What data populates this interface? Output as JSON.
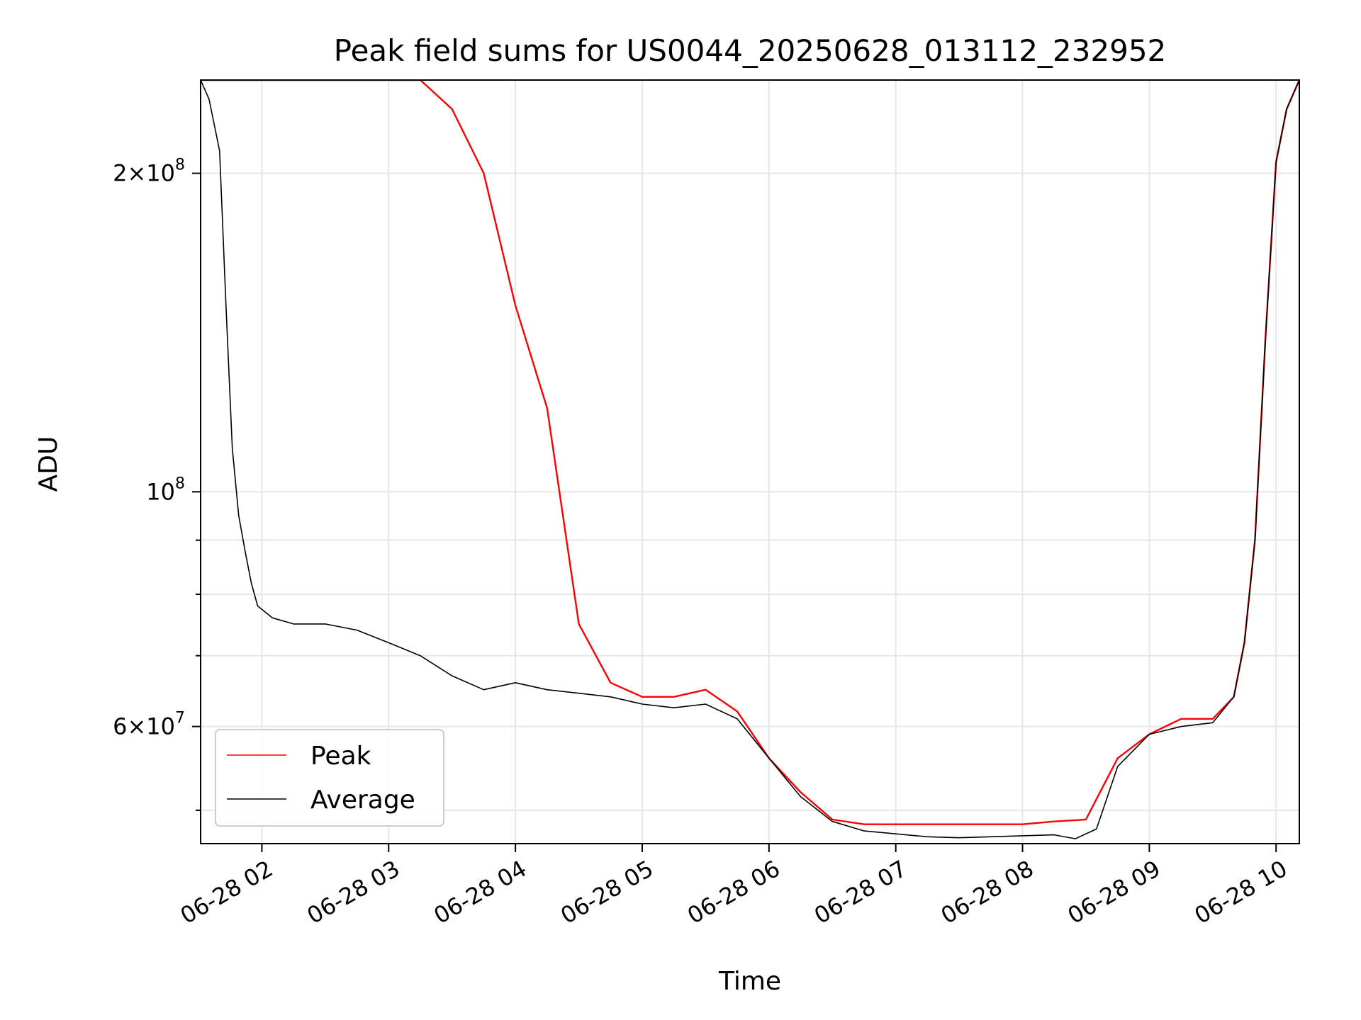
{
  "chart_data": {
    "type": "line",
    "title": "Peak field sums for US0044_20250628_013112_232952",
    "xlabel": "Time",
    "ylabel": "ADU",
    "yscale": "log",
    "ylim": [
      46500000,
      245000000
    ],
    "xlim": [
      "06-28 01:31",
      "06-28 10:11"
    ],
    "grid": true,
    "legend_position": "lower-left",
    "x_ticks": [
      "06-28 02",
      "06-28 03",
      "06-28 04",
      "06-28 05",
      "06-28 06",
      "06-28 07",
      "06-28 08",
      "06-28 09",
      "06-28 10"
    ],
    "y_ticks": [
      {
        "value": 200000000,
        "mantissa": "2",
        "exponent": "8"
      },
      {
        "value": 100000000,
        "mantissa": "",
        "exponent": "8"
      },
      {
        "value": 60000000,
        "mantissa": "6",
        "exponent": "7"
      }
    ],
    "y_minor_ticks": [
      50000000,
      70000000,
      80000000,
      90000000
    ],
    "series": [
      {
        "name": "Peak",
        "color": "#ff0000",
        "x": [
          "06-28 01:31",
          "06-28 01:35",
          "06-28 01:40",
          "06-28 01:45",
          "06-28 01:50",
          "06-28 02:00",
          "06-28 02:15",
          "06-28 02:30",
          "06-28 02:45",
          "06-28 03:00",
          "06-28 03:15",
          "06-28 03:30",
          "06-28 03:45",
          "06-28 04:00",
          "06-28 04:15",
          "06-28 04:30",
          "06-28 04:45",
          "06-28 05:00",
          "06-28 05:15",
          "06-28 05:30",
          "06-28 05:45",
          "06-28 06:00",
          "06-28 06:15",
          "06-28 06:30",
          "06-28 06:45",
          "06-28 07:00",
          "06-28 07:15",
          "06-28 07:30",
          "06-28 07:45",
          "06-28 08:00",
          "06-28 08:15",
          "06-28 08:30",
          "06-28 08:45",
          "06-28 09:00",
          "06-28 09:15",
          "06-28 09:30",
          "06-28 09:40",
          "06-28 09:45",
          "06-28 09:50",
          "06-28 09:55",
          "06-28 10:00",
          "06-28 10:05",
          "06-28 10:11"
        ],
        "y": [
          245000000,
          245000000,
          245000000,
          245000000,
          245000000,
          245000000,
          245000000,
          245000000,
          245000000,
          245000000,
          245000000,
          230000000,
          200000000,
          150000000,
          120000000,
          75000000,
          66000000,
          64000000,
          64000000,
          65000000,
          62000000,
          56000000,
          52000000,
          49000000,
          48500000,
          48500000,
          48500000,
          48500000,
          48500000,
          48500000,
          48800000,
          49000000,
          56000000,
          59000000,
          61000000,
          61000000,
          64000000,
          72000000,
          90000000,
          140000000,
          205000000,
          230000000,
          245000000
        ]
      },
      {
        "name": "Average",
        "color": "#000000",
        "x": [
          "06-28 01:31",
          "06-28 01:35",
          "06-28 01:40",
          "06-28 01:43",
          "06-28 01:46",
          "06-28 01:49",
          "06-28 01:52",
          "06-28 01:55",
          "06-28 01:58",
          "06-28 02:05",
          "06-28 02:15",
          "06-28 02:30",
          "06-28 02:45",
          "06-28 03:00",
          "06-28 03:15",
          "06-28 03:30",
          "06-28 03:45",
          "06-28 04:00",
          "06-28 04:15",
          "06-28 04:30",
          "06-28 04:45",
          "06-28 05:00",
          "06-28 05:15",
          "06-28 05:30",
          "06-28 05:45",
          "06-28 06:00",
          "06-28 06:15",
          "06-28 06:30",
          "06-28 06:45",
          "06-28 07:00",
          "06-28 07:15",
          "06-28 07:30",
          "06-28 07:45",
          "06-28 08:00",
          "06-28 08:15",
          "06-28 08:25",
          "06-28 08:35",
          "06-28 08:45",
          "06-28 09:00",
          "06-28 09:15",
          "06-28 09:30",
          "06-28 09:40",
          "06-28 09:45",
          "06-28 09:50",
          "06-28 09:55",
          "06-28 10:00",
          "06-28 10:05",
          "06-28 10:11"
        ],
        "y": [
          245000000,
          235000000,
          210000000,
          150000000,
          110000000,
          95000000,
          88000000,
          82000000,
          78000000,
          76000000,
          75000000,
          75000000,
          74000000,
          72000000,
          70000000,
          67000000,
          65000000,
          66000000,
          65000000,
          64500000,
          64000000,
          63000000,
          62500000,
          63000000,
          61000000,
          56000000,
          51500000,
          48800000,
          47800000,
          47500000,
          47200000,
          47100000,
          47200000,
          47300000,
          47400000,
          47000000,
          48000000,
          55000000,
          59000000,
          60000000,
          60500000,
          64000000,
          72000000,
          90000000,
          140000000,
          205000000,
          230000000,
          245000000
        ]
      }
    ]
  }
}
